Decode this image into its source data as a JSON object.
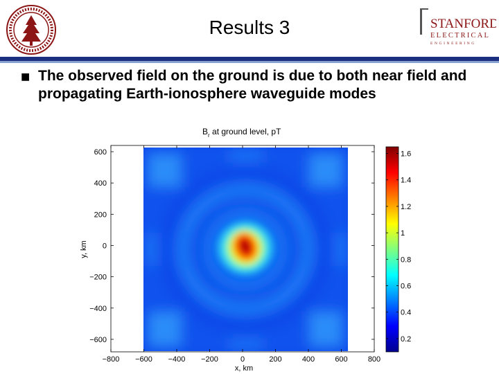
{
  "slide": {
    "title": "Results 3",
    "bullet_text": "The observed field on the ground is due to both near field and propagating Earth-ionosphere waveguide modes"
  },
  "logo": {
    "line1": "STANFORD",
    "line2": "ELECTRICAL",
    "line3": "ENGINEERING",
    "seal_text": "LELAND STANFORD JUNIOR UNIVERSITY"
  },
  "colors": {
    "band_dark": "#1a2f80",
    "band_light": "#8aa2cf",
    "logo_red": "#8c1515"
  },
  "chart_data": {
    "type": "heatmap",
    "title": "B",
    "title_subscript": "r",
    "title_suffix": " at ground level, pT",
    "xlabel": "x, km",
    "ylabel": "y, km",
    "xlim": [
      -800,
      800
    ],
    "ylim": [
      -680,
      640
    ],
    "data_extent": {
      "x": [
        -620,
        620
      ],
      "y": [
        -650,
        650
      ]
    },
    "x_ticks": [
      "−800",
      "−600",
      "−400",
      "−200",
      "0",
      "200",
      "400",
      "600",
      "800"
    ],
    "y_ticks": [
      "600",
      "400",
      "200",
      "0",
      "−200",
      "−400",
      "−600"
    ],
    "colorbar": {
      "min": 0.1,
      "max": 1.65,
      "ticks": [
        "1.6",
        "1.4",
        "1.2",
        "1",
        "0.8",
        "0.6",
        "0.4",
        "0.2"
      ],
      "colormap": "jet"
    },
    "peak": {
      "x": 0,
      "y": 0,
      "value": 1.65
    }
  }
}
